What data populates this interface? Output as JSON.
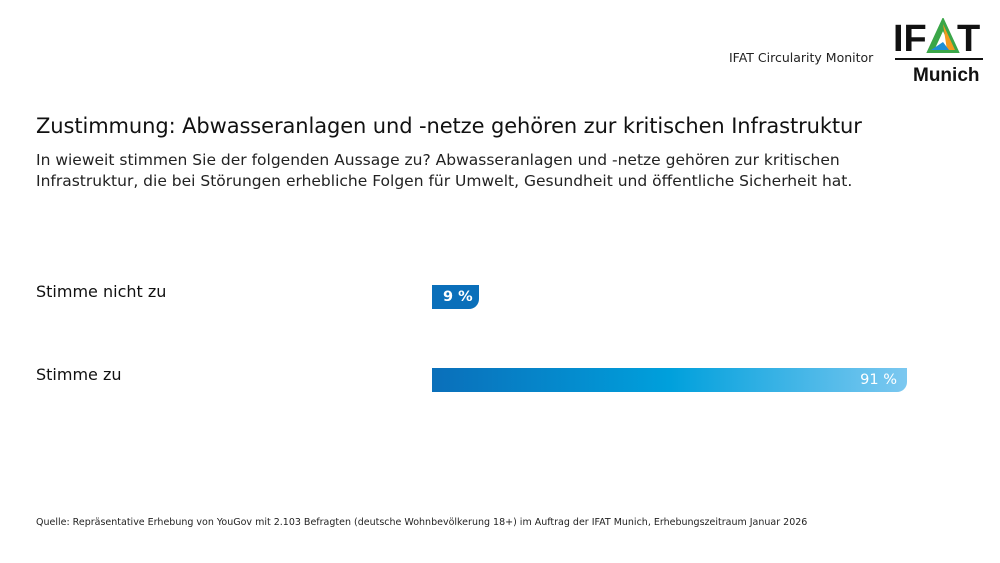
{
  "header": {
    "monitor_label": "IFAT Circularity Monitor",
    "logo_text": "IFAT Munich"
  },
  "title": "Zustimmung: Abwasseranlagen und -netze gehören zur kritischen Infrastruktur",
  "subtitle": "In wieweit stimmen Sie der folgenden Aussage zu? Abwasseranlagen und -netze gehören zur kritischen Infrastruktur, die bei Störungen erhebliche Folgen für Umwelt, Gesundheit und öffentliche Sicherheit hat.",
  "chart_data": {
    "type": "bar",
    "orientation": "horizontal",
    "categories": [
      "Stimme nicht zu",
      "Stimme zu"
    ],
    "values": [
      9,
      91
    ],
    "value_labels": [
      "9 %",
      "91 %"
    ],
    "unit": "%",
    "xlim": [
      0,
      100
    ],
    "grid": false,
    "colors": {
      "bar_start": "#0a6fba",
      "bar_mid": "#00a0dc",
      "bar_end": "#7cc8f0"
    }
  },
  "source": "Quelle: Repräsentative Erhebung von YouGov mit 2.103 Befragten (deutsche Wohnbevölkerung 18+) im Auftrag der IFAT Munich, Erhebungszeitraum Januar 2026"
}
